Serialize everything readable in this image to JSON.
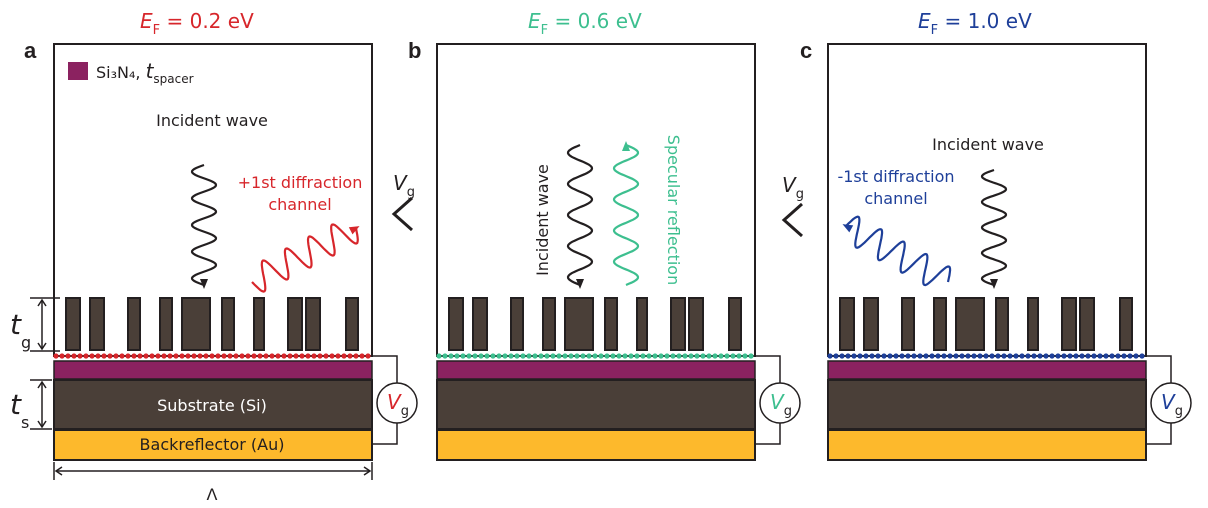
{
  "panels": [
    {
      "label": "a",
      "title": {
        "symbol": "E",
        "subscript": "F",
        "text": " = 0.2 eV"
      },
      "legend": {
        "text": "Si₃N₄, ",
        "symbol": "t",
        "subscript": "spacer"
      },
      "incident": "Incident wave",
      "diffraction": [
        "+1st diffraction",
        "channel"
      ],
      "gate": {
        "symbol": "V",
        "subscript": "g"
      },
      "tg": {
        "symbol": "t",
        "subscript": "g"
      },
      "ts": {
        "symbol": "t",
        "subscript": "s"
      },
      "substrate": "Substrate (Si)",
      "backreflector": "Backreflector (Au)",
      "period": "Λ"
    },
    {
      "label": "b",
      "title": {
        "symbol": "E",
        "subscript": "F",
        "text": " = 0.6 eV"
      },
      "incident": "Incident wave",
      "reflection": "Specular reflection",
      "gate": {
        "symbol": "V",
        "subscript": "g"
      }
    },
    {
      "label": "c",
      "title": {
        "symbol": "E",
        "subscript": "F",
        "text": " = 1.0 eV"
      },
      "incident": "Incident wave",
      "diffraction": [
        "-1st diffraction",
        "channel"
      ],
      "gate": {
        "symbol": "V",
        "subscript": "g"
      }
    }
  ],
  "gate_labels": [
    {
      "symbol": "V",
      "subscript": "g"
    },
    {
      "symbol": "V",
      "subscript": "g"
    }
  ]
}
